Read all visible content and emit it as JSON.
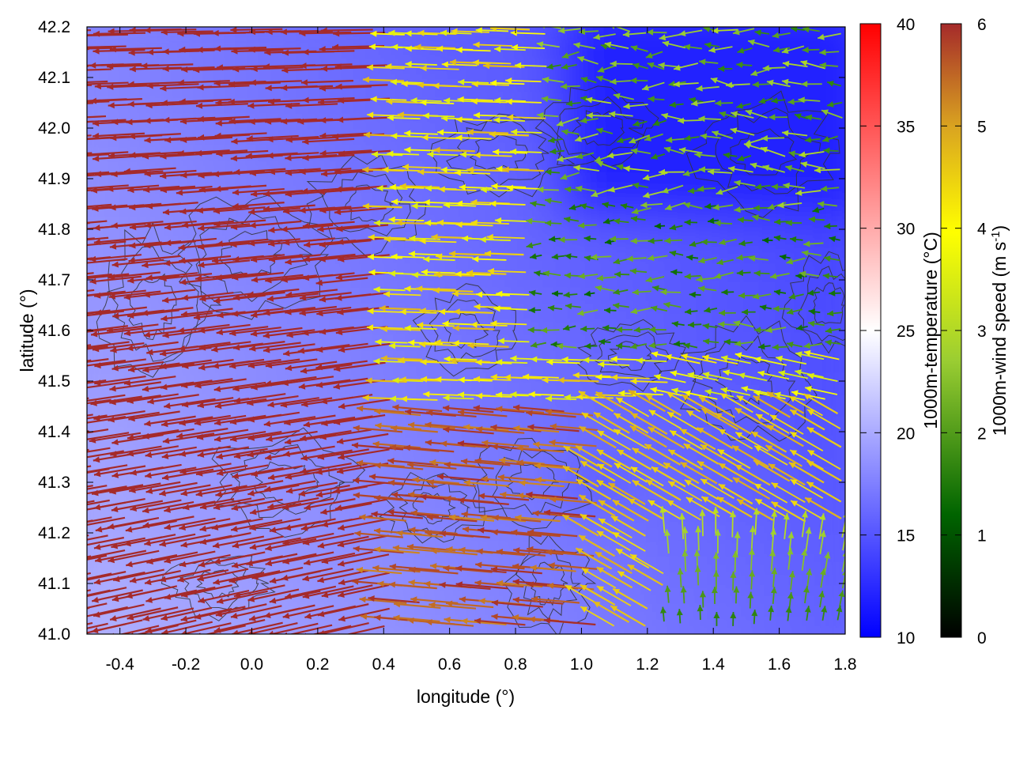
{
  "chart_data": {
    "type": "vector-field",
    "title": "",
    "xlabel": "longitude (°)",
    "ylabel": "latitude (°)",
    "xlim": [
      -0.5,
      1.8
    ],
    "ylim": [
      41.0,
      42.2
    ],
    "xticks": [
      "-0.4",
      "-0.2",
      "0.0",
      "0.2",
      "0.4",
      "0.6",
      "0.8",
      "1.0",
      "1.2",
      "1.4",
      "1.6",
      "1.8"
    ],
    "yticks": [
      "41.0",
      "41.1",
      "41.2",
      "41.3",
      "41.4",
      "41.5",
      "41.6",
      "41.7",
      "41.8",
      "41.9",
      "42.0",
      "42.1",
      "42.2"
    ],
    "grid": false,
    "background_field": {
      "quantity": "1000m-temperature",
      "colorbar_label": "1000m-temperature (°C)",
      "range": [
        10,
        40
      ],
      "ticks": [
        "10",
        "15",
        "20",
        "25",
        "30",
        "35",
        "40"
      ],
      "colors": [
        "#0000ff",
        "#ffffff",
        "#ff0000"
      ],
      "approx_values": {
        "west_coastal": 20,
        "central": 17.5,
        "northeast": 12
      }
    },
    "vectors": {
      "quantity": "1000m-wind speed",
      "colorbar_label": "1000m-wind speed (m s-1)",
      "colorbar_label_parts": [
        "1000m-wind speed (m s",
        "-1",
        ")"
      ],
      "range": [
        0,
        6
      ],
      "ticks": [
        "0",
        "1",
        "2",
        "3",
        "4",
        "5",
        "6"
      ],
      "colors": [
        "#000000",
        "#006400",
        "#9acd32",
        "#ffff00",
        "#daa520",
        "#a52a2a"
      ],
      "regime_description": {
        "west_half": "strong easterly flow (~6 m/s) from east toward west",
        "northeast": "weak winds (1-3 m/s) toward west",
        "southeast": "weak winds (1-3 m/s) turning northward",
        "central_band": "moderate winds 3.5-5 m/s toward west"
      }
    },
    "contours": {
      "quantity": "terrain",
      "color": "#333333"
    }
  }
}
